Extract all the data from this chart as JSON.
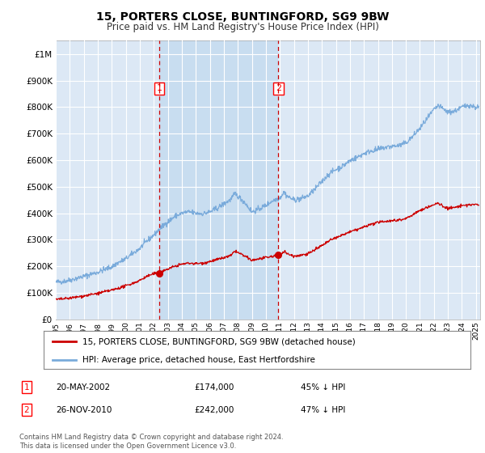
{
  "title": "15, PORTERS CLOSE, BUNTINGFORD, SG9 9BW",
  "subtitle": "Price paid vs. HM Land Registry's House Price Index (HPI)",
  "legend_line1": "15, PORTERS CLOSE, BUNTINGFORD, SG9 9BW (detached house)",
  "legend_line2": "HPI: Average price, detached house, East Hertfordshire",
  "sale1_date": "20-MAY-2002",
  "sale1_price": "£174,000",
  "sale1_hpi": "45% ↓ HPI",
  "sale1_year": 2002.38,
  "sale1_value": 174000,
  "sale2_date": "26-NOV-2010",
  "sale2_price": "£242,000",
  "sale2_hpi": "47% ↓ HPI",
  "sale2_year": 2010.9,
  "sale2_value": 242000,
  "footer": "Contains HM Land Registry data © Crown copyright and database right 2024.\nThis data is licensed under the Open Government Licence v3.0.",
  "hpi_color": "#7aabdb",
  "sale_color": "#cc0000",
  "plot_bg": "#dce8f5",
  "highlight_bg": "#c8ddf0",
  "ylim_max": 1050000,
  "xlim_min": 1995,
  "xlim_max": 2025.3
}
